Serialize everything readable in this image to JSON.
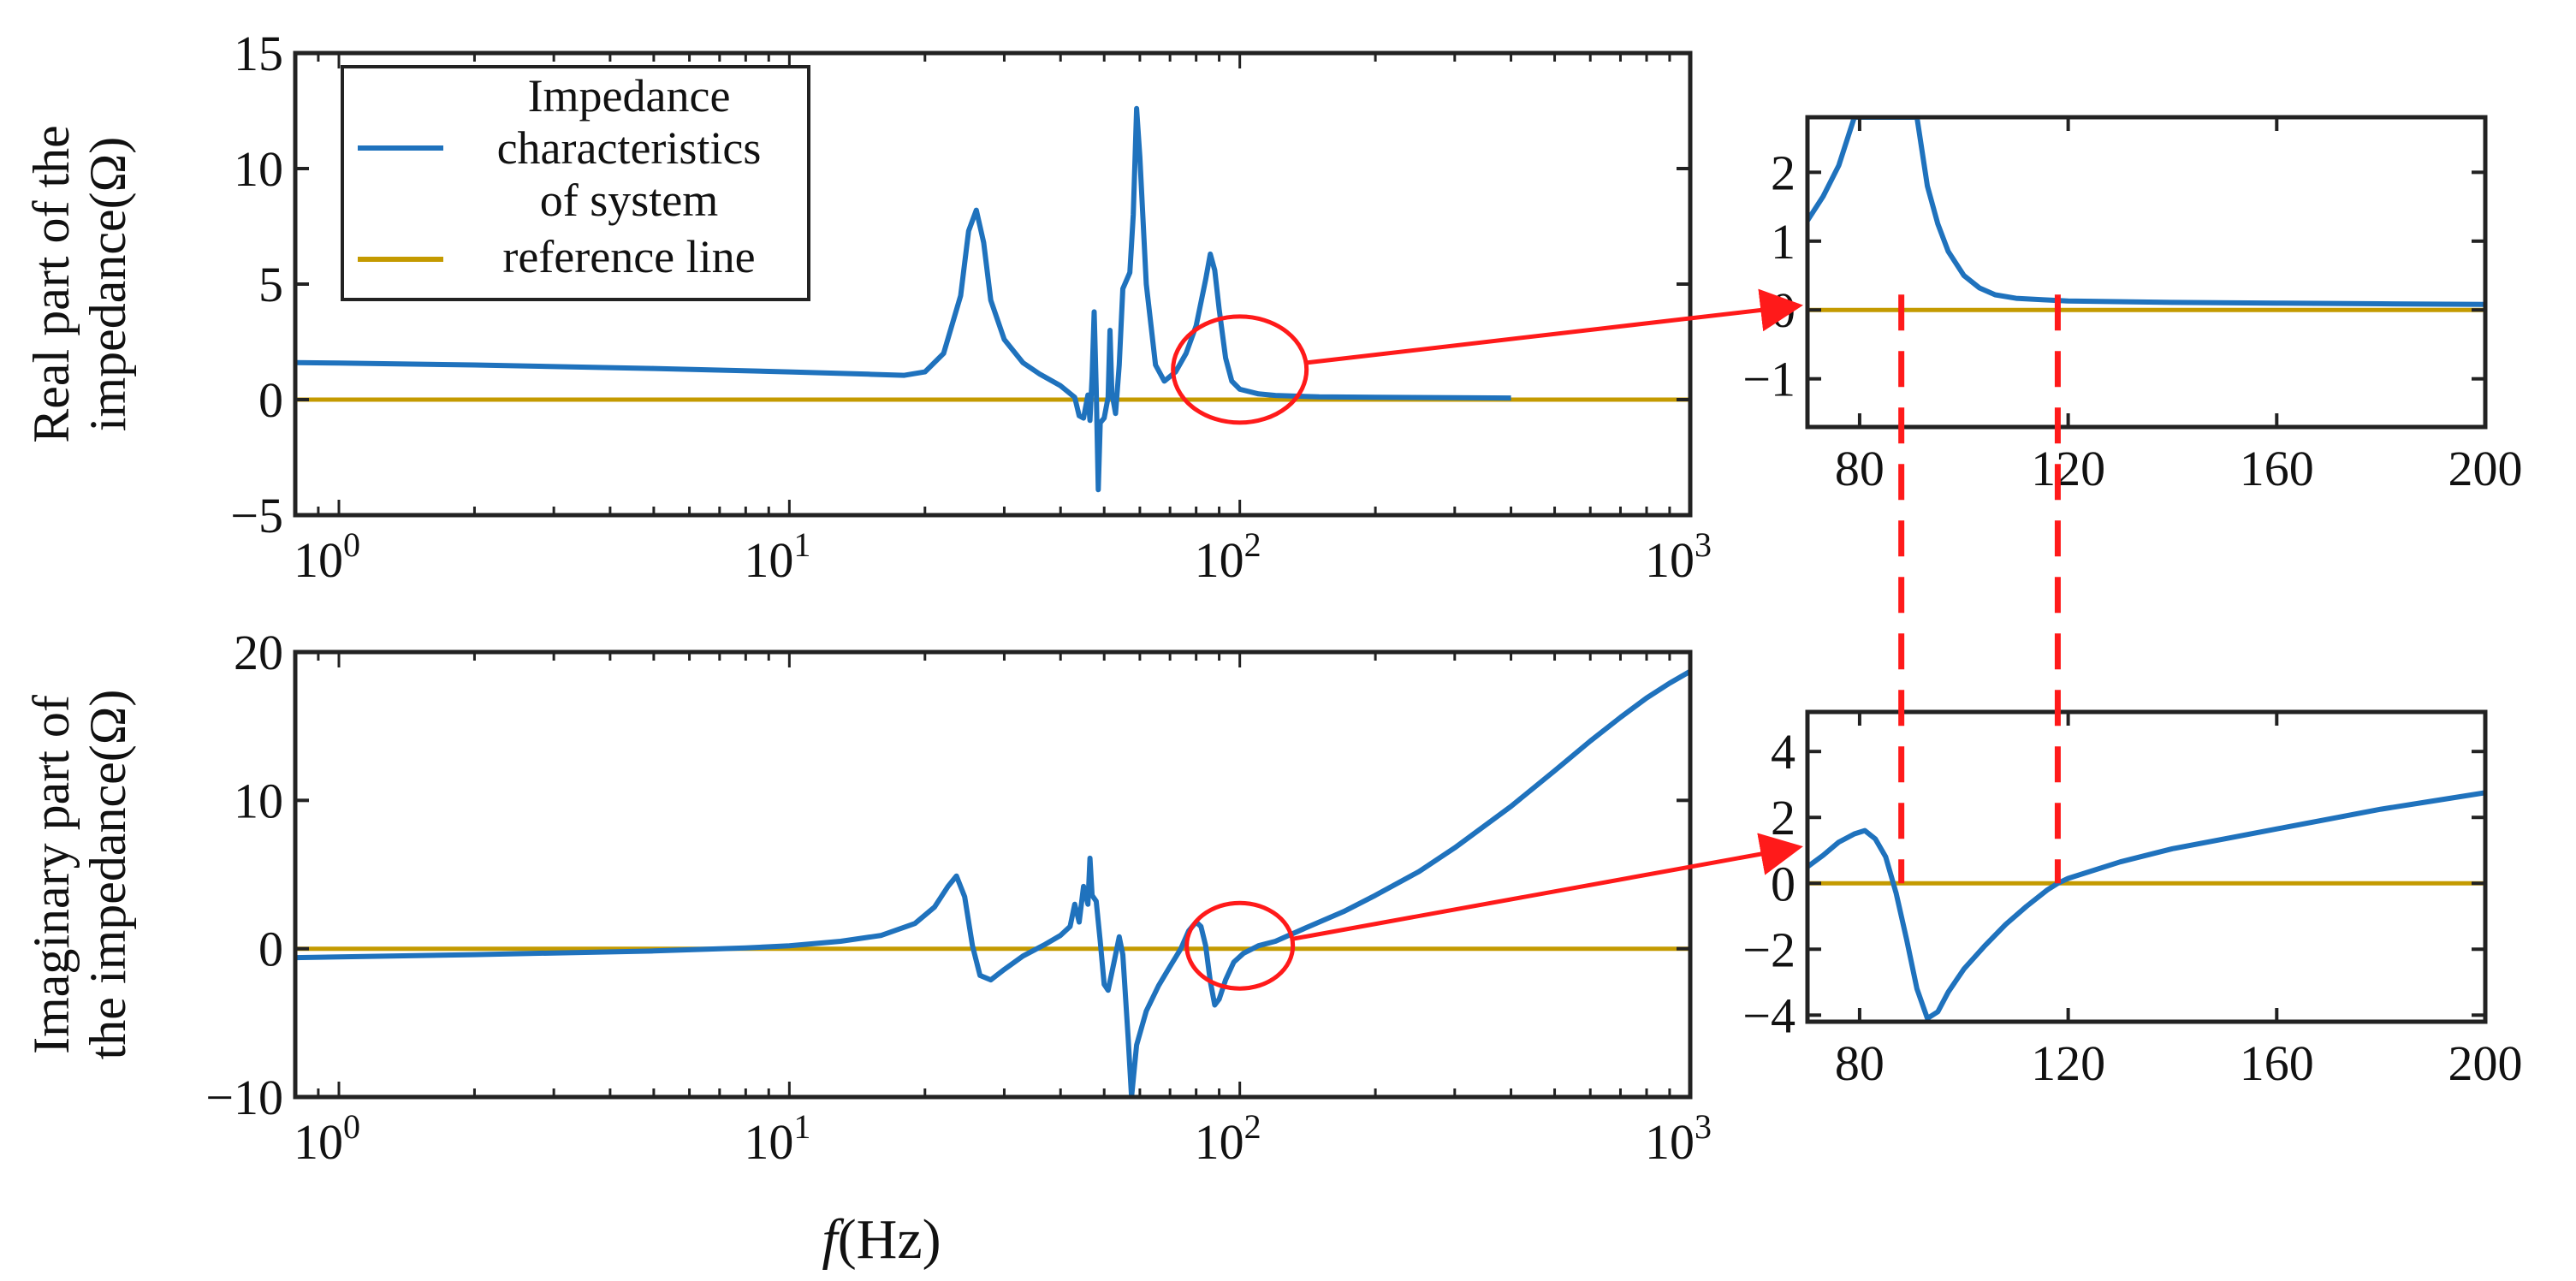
{
  "colors": {
    "series": "#1f72bd",
    "reference": "#c49a00",
    "annotation": "#ff1a1a",
    "frame": "#222222"
  },
  "chart_data": [
    {
      "id": "real-main",
      "type": "line",
      "xscale": "log",
      "xlim": [
        0.8,
        1000
      ],
      "ylim": [
        -5,
        15
      ],
      "yticks": [
        -5,
        0,
        5,
        10,
        15
      ],
      "ytick_labels": [
        "−5",
        "0",
        "5",
        "10",
        "15"
      ],
      "xticks": [
        1,
        10,
        100,
        1000
      ],
      "xtick_labels": [
        [
          "10",
          "0"
        ],
        [
          "10",
          "1"
        ],
        [
          "10",
          "2"
        ],
        [
          "10",
          "3"
        ]
      ],
      "ylabel_lines": [
        "Real part of the",
        "impedance(Ω)"
      ],
      "legend": {
        "position": "top-left",
        "entries": [
          {
            "lines": [
              "Impedance",
              "characteristics",
              "of system"
            ],
            "series": "system"
          },
          {
            "lines": [
              "reference line"
            ],
            "series": "reference"
          }
        ]
      },
      "series": [
        {
          "name": "Impedance characteristics of system",
          "points": [
            [
              0.8,
              1.6
            ],
            [
              1,
              1.58
            ],
            [
              2,
              1.5
            ],
            [
              5,
              1.35
            ],
            [
              10,
              1.2
            ],
            [
              15,
              1.1
            ],
            [
              18,
              1.05
            ],
            [
              20,
              1.2
            ],
            [
              22,
              2.0
            ],
            [
              24,
              4.5
            ],
            [
              25,
              7.3
            ],
            [
              26,
              8.2
            ],
            [
              27,
              6.8
            ],
            [
              28,
              4.3
            ],
            [
              30,
              2.6
            ],
            [
              33,
              1.6
            ],
            [
              36,
              1.1
            ],
            [
              40,
              0.6
            ],
            [
              43,
              0.1
            ],
            [
              44,
              -0.7
            ],
            [
              45,
              -0.8
            ],
            [
              46,
              0.2
            ],
            [
              46.5,
              -0.9
            ],
            [
              47,
              1.0
            ],
            [
              47.5,
              3.8
            ],
            [
              48,
              0.5
            ],
            [
              48.5,
              -3.9
            ],
            [
              49,
              -1.0
            ],
            [
              50,
              -0.8
            ],
            [
              51,
              0.1
            ],
            [
              51.5,
              3.0
            ],
            [
              52,
              0.3
            ],
            [
              53,
              -0.6
            ],
            [
              54,
              1.5
            ],
            [
              55,
              4.8
            ],
            [
              57,
              5.5
            ],
            [
              58,
              8.0
            ],
            [
              59,
              12.6
            ],
            [
              60,
              10.5
            ],
            [
              62,
              5.0
            ],
            [
              65,
              1.5
            ],
            [
              68,
              0.8
            ],
            [
              72,
              1.2
            ],
            [
              76,
              2.0
            ],
            [
              80,
              3.2
            ],
            [
              84,
              5.2
            ],
            [
              86,
              6.3
            ],
            [
              88,
              5.6
            ],
            [
              90,
              3.9
            ],
            [
              93,
              1.8
            ],
            [
              96,
              0.8
            ],
            [
              100,
              0.45
            ],
            [
              110,
              0.25
            ],
            [
              120,
              0.18
            ],
            [
              150,
              0.12
            ],
            [
              200,
              0.1
            ],
            [
              300,
              0.08
            ],
            [
              400,
              0.07
            ]
          ]
        },
        {
          "name": "reference line",
          "points": [
            [
              0.8,
              0
            ],
            [
              1000,
              0
            ]
          ]
        }
      ]
    },
    {
      "id": "real-zoom",
      "type": "line",
      "xscale": "linear",
      "xlim": [
        70,
        200
      ],
      "ylim": [
        -1.7,
        2.8
      ],
      "yticks": [
        -1,
        0,
        1,
        2
      ],
      "ytick_labels": [
        "−1",
        "0",
        "1",
        "2"
      ],
      "xticks": [
        80,
        120,
        160,
        200
      ],
      "xtick_labels": [
        "80",
        "120",
        "160",
        "200"
      ],
      "series": [
        {
          "name": "Impedance characteristics of system",
          "points": [
            [
              70,
              1.3
            ],
            [
              73,
              1.65
            ],
            [
              76,
              2.1
            ],
            [
              79,
              2.8
            ],
            [
              91,
              2.8
            ],
            [
              93,
              1.8
            ],
            [
              95,
              1.25
            ],
            [
              97,
              0.85
            ],
            [
              100,
              0.5
            ],
            [
              103,
              0.32
            ],
            [
              106,
              0.22
            ],
            [
              110,
              0.17
            ],
            [
              115,
              0.15
            ],
            [
              120,
              0.13
            ],
            [
              140,
              0.11
            ],
            [
              160,
              0.1
            ],
            [
              180,
              0.09
            ],
            [
              200,
              0.08
            ]
          ]
        },
        {
          "name": "reference line",
          "points": [
            [
              70,
              0
            ],
            [
              200,
              0
            ]
          ]
        }
      ]
    },
    {
      "id": "imag-main",
      "type": "line",
      "xscale": "log",
      "xlim": [
        0.8,
        1000
      ],
      "ylim": [
        -10,
        20
      ],
      "yticks": [
        -10,
        0,
        10,
        20
      ],
      "ytick_labels": [
        "−10",
        "0",
        "10",
        "20"
      ],
      "xticks": [
        1,
        10,
        100,
        1000
      ],
      "xtick_labels": [
        [
          "10",
          "0"
        ],
        [
          "10",
          "1"
        ],
        [
          "10",
          "2"
        ],
        [
          "10",
          "3"
        ]
      ],
      "ylabel_lines": [
        "Imaginary part of",
        "the impedance(Ω)"
      ],
      "xlabel": {
        "var": "f",
        "unit": "(Hz)"
      },
      "series": [
        {
          "name": "Impedance characteristics of system",
          "points": [
            [
              0.8,
              -0.6
            ],
            [
              1,
              -0.55
            ],
            [
              2,
              -0.4
            ],
            [
              5,
              -0.15
            ],
            [
              8,
              0.05
            ],
            [
              10,
              0.2
            ],
            [
              13,
              0.5
            ],
            [
              16,
              0.9
            ],
            [
              19,
              1.7
            ],
            [
              21,
              2.8
            ],
            [
              22.5,
              4.2
            ],
            [
              23.5,
              4.9
            ],
            [
              24.5,
              3.5
            ],
            [
              25.5,
              0.2
            ],
            [
              26.5,
              -1.8
            ],
            [
              28,
              -2.1
            ],
            [
              30,
              -1.4
            ],
            [
              33,
              -0.5
            ],
            [
              37,
              0.3
            ],
            [
              40,
              0.9
            ],
            [
              42,
              1.5
            ],
            [
              43,
              3.0
            ],
            [
              44,
              1.8
            ],
            [
              45,
              4.2
            ],
            [
              46,
              3.0
            ],
            [
              46.5,
              6.1
            ],
            [
              47,
              3.6
            ],
            [
              48,
              3.2
            ],
            [
              49,
              0.5
            ],
            [
              50,
              -2.4
            ],
            [
              51,
              -2.8
            ],
            [
              52.5,
              -1.0
            ],
            [
              54,
              0.8
            ],
            [
              55,
              -0.4
            ],
            [
              56.5,
              -6.0
            ],
            [
              57.5,
              -10.0
            ],
            [
              59,
              -6.5
            ],
            [
              62,
              -4.2
            ],
            [
              66,
              -2.5
            ],
            [
              70,
              -1.2
            ],
            [
              74,
              0.0
            ],
            [
              77,
              1.2
            ],
            [
              80,
              1.8
            ],
            [
              82,
              1.5
            ],
            [
              84,
              0.2
            ],
            [
              86,
              -2.2
            ],
            [
              88,
              -3.8
            ],
            [
              90,
              -3.4
            ],
            [
              93,
              -2.1
            ],
            [
              97,
              -0.9
            ],
            [
              102,
              -0.3
            ],
            [
              110,
              0.2
            ],
            [
              120,
              0.5
            ],
            [
              140,
              1.4
            ],
            [
              170,
              2.5
            ],
            [
              200,
              3.6
            ],
            [
              250,
              5.2
            ],
            [
              300,
              6.8
            ],
            [
              400,
              9.6
            ],
            [
              500,
              12.0
            ],
            [
              600,
              14.0
            ],
            [
              700,
              15.6
            ],
            [
              800,
              16.9
            ],
            [
              900,
              17.9
            ],
            [
              1000,
              18.7
            ]
          ]
        },
        {
          "name": "reference line",
          "points": [
            [
              0.8,
              0
            ],
            [
              1000,
              0
            ]
          ]
        }
      ]
    },
    {
      "id": "imag-zoom",
      "type": "line",
      "xscale": "linear",
      "xlim": [
        70,
        200
      ],
      "ylim": [
        -4.2,
        5.2
      ],
      "yticks": [
        -4,
        -2,
        0,
        2,
        4
      ],
      "ytick_labels": [
        "−4",
        "−2",
        "0",
        "2",
        "4"
      ],
      "xticks": [
        80,
        120,
        160,
        200
      ],
      "xtick_labels": [
        "80",
        "120",
        "160",
        "200"
      ],
      "series": [
        {
          "name": "Impedance characteristics of system",
          "points": [
            [
              70,
              0.5
            ],
            [
              73,
              0.85
            ],
            [
              76,
              1.25
            ],
            [
              79,
              1.5
            ],
            [
              81,
              1.6
            ],
            [
              83,
              1.35
            ],
            [
              85,
              0.8
            ],
            [
              87,
              -0.3
            ],
            [
              89,
              -1.7
            ],
            [
              91,
              -3.2
            ],
            [
              93,
              -4.1
            ],
            [
              95,
              -3.9
            ],
            [
              97,
              -3.3
            ],
            [
              100,
              -2.6
            ],
            [
              104,
              -1.9
            ],
            [
              108,
              -1.25
            ],
            [
              112,
              -0.7
            ],
            [
              116,
              -0.2
            ],
            [
              118,
              0.0
            ],
            [
              120,
              0.15
            ],
            [
              130,
              0.65
            ],
            [
              140,
              1.05
            ],
            [
              150,
              1.35
            ],
            [
              160,
              1.65
            ],
            [
              170,
              1.95
            ],
            [
              180,
              2.25
            ],
            [
              190,
              2.5
            ],
            [
              200,
              2.75
            ]
          ]
        },
        {
          "name": "reference line",
          "points": [
            [
              70,
              0
            ],
            [
              200,
              0
            ]
          ]
        }
      ]
    }
  ],
  "annotations": {
    "zoom_circles": [
      {
        "panel": "real-main",
        "center": [
          100,
          1.3
        ]
      },
      {
        "panel": "imag-main",
        "center": [
          100,
          0.2
        ]
      }
    ],
    "dashed_markers_hz": [
      88,
      118
    ]
  }
}
